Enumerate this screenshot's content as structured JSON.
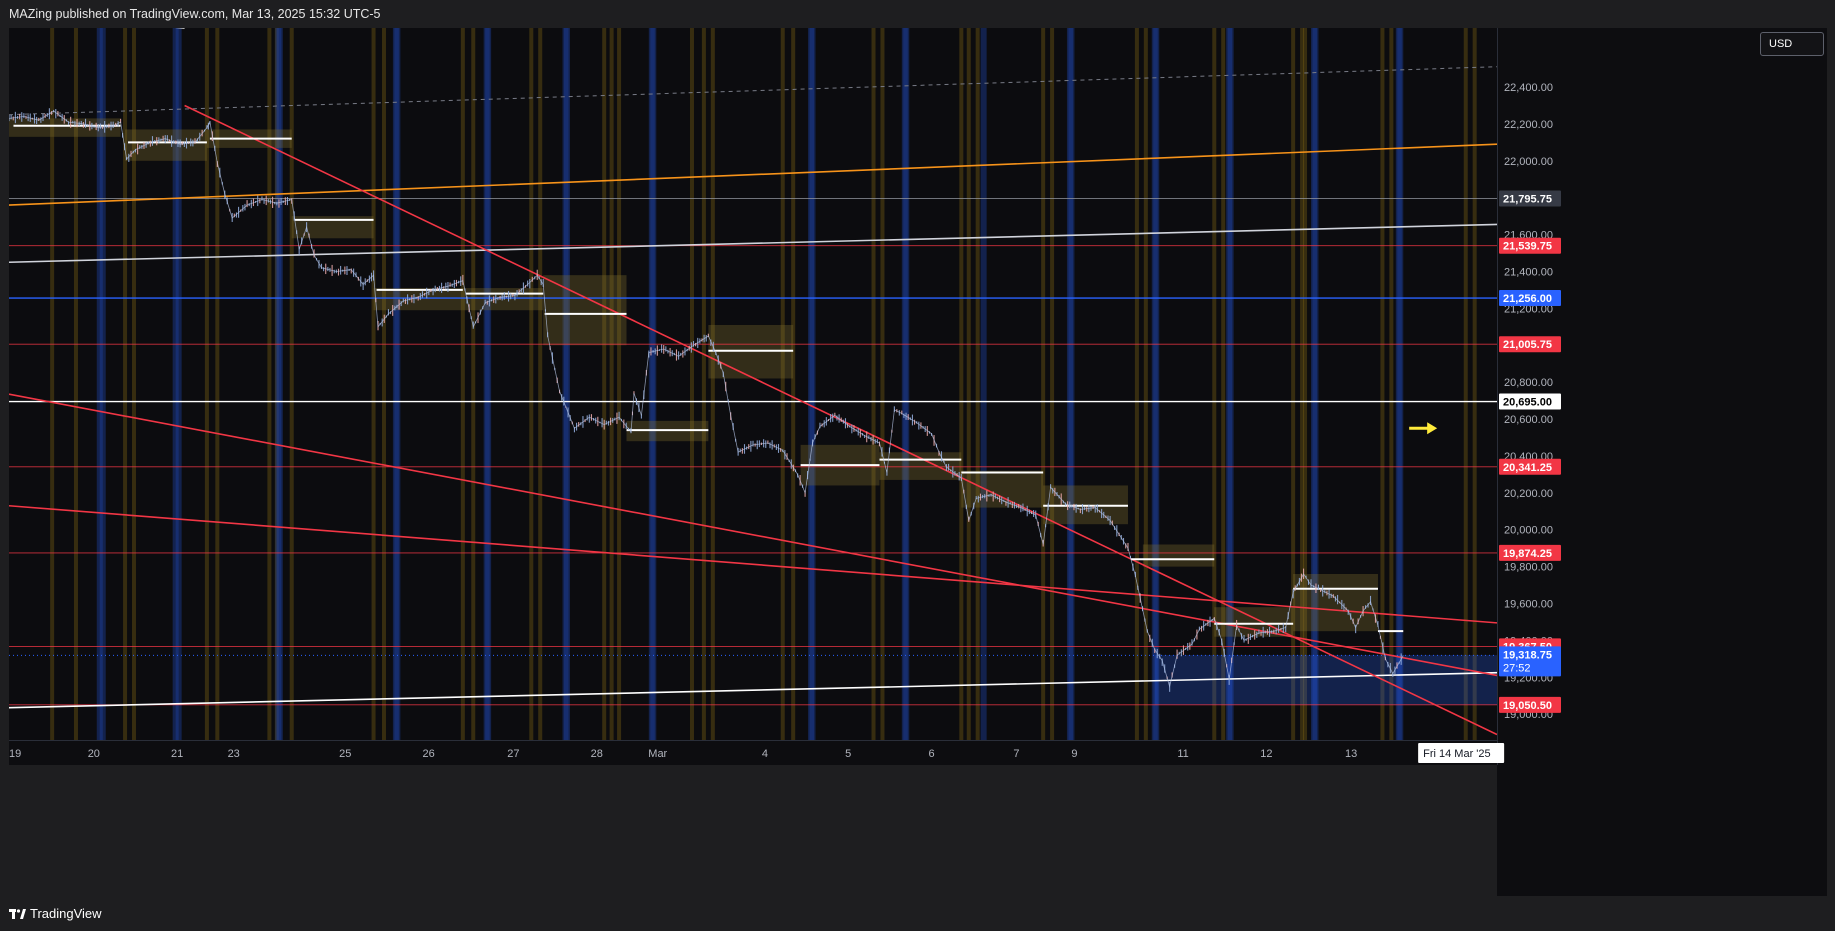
{
  "header": {
    "published": "MAZing published on TradingView.com, Mar 13, 2025 15:32 UTC-5"
  },
  "scale": {
    "currency": "USD"
  },
  "brand": {
    "name": "TradingView",
    "logo_icon": "tradingview-logo-icon"
  },
  "colors": {
    "background": "#0c0c0f",
    "scale_background": "#0d0d10",
    "red_line": "#f23645",
    "orange_line": "#f7931a",
    "blue_line": "#2962ff",
    "white_line": "#ffffff",
    "session_gold": "#8a6d14",
    "session_blue": "#1c3f99",
    "box_fill": "#7d6d2e",
    "blue_zone": "#2962ff",
    "arrow": "#ffeb3b",
    "candles": "#8fa9d8"
  },
  "chart_data": {
    "type": "candlestick",
    "y_axis": {
      "min": 18860,
      "max": 22720,
      "ticks": [
        22400,
        22200,
        22000,
        21600,
        21400,
        21200,
        20800,
        20600,
        20400,
        20200,
        20000,
        19800,
        19600,
        19400,
        19200,
        19000
      ],
      "tick_labels": [
        "22,400.00",
        "22,200.00",
        "22,000.00",
        "21,600.00",
        "21,400.00",
        "21,200.00",
        "20,800.00",
        "20,600.00",
        "20,400.00",
        "20,200.00",
        "20,000.00",
        "19,800.00",
        "19,600.00",
        "19,400.00",
        "19,200.00",
        "19,000.00"
      ]
    },
    "x_axis": {
      "labels": [
        "19",
        "20",
        "21",
        "23",
        "25",
        "26",
        "27",
        "28",
        "Mar",
        "4",
        "5",
        "6",
        "7",
        "9",
        "11",
        "12",
        "13"
      ],
      "current_date_label": "Fri 14 Mar '25"
    },
    "price_levels": [
      {
        "value": 21795.75,
        "label": "21,795.75",
        "color": "#9598a1",
        "badge_bg": "#363a45",
        "style": "thin"
      },
      {
        "value": 21539.75,
        "label": "21,539.75",
        "color": "#f23645",
        "badge_bg": "#f23645",
        "style": "thin"
      },
      {
        "value": 21256.0,
        "label": "21,256.00",
        "color": "#2962ff",
        "badge_bg": "#2962ff",
        "style": "normal"
      },
      {
        "value": 21005.75,
        "label": "21,005.75",
        "color": "#f23645",
        "badge_bg": "#f23645",
        "style": "thin"
      },
      {
        "value": 20695.0,
        "label": "20,695.00",
        "color": "#ffffff",
        "badge_bg": "#ffffff",
        "badge_text": "#000000",
        "style": "normal"
      },
      {
        "value": 20341.25,
        "label": "20,341.25",
        "color": "#f23645",
        "badge_bg": "#f23645",
        "style": "thin"
      },
      {
        "value": 19874.25,
        "label": "19,874.25",
        "color": "#f23645",
        "badge_bg": "#f23645",
        "style": "thin"
      },
      {
        "value": 19367.5,
        "label": "19,367.50",
        "color": "#f23645",
        "badge_bg": "#f23645",
        "style": "thin"
      },
      {
        "value": 19050.5,
        "label": "19,050.50",
        "color": "#f23645",
        "badge_bg": "#f23645",
        "style": "thin"
      }
    ],
    "last_price": {
      "value": 19318.75,
      "label": "19,318.75",
      "countdown": "27:52"
    },
    "trend_lines": [
      {
        "color": "#f7931a",
        "from": [
          0.0,
          21760
        ],
        "to": [
          1.0,
          22090
        ]
      },
      {
        "color": "#d1d4dc",
        "from": [
          0.0,
          21450
        ],
        "to": [
          1.0,
          21655
        ]
      },
      {
        "color": "#ffffff",
        "from": [
          0.0,
          19035
        ],
        "to": [
          1.0,
          19225
        ]
      },
      {
        "color": "#ffffff",
        "from": [
          0.0,
          22800
        ],
        "to": [
          0.118,
          22720
        ]
      },
      {
        "color": "#f23645",
        "from": [
          0.118,
          22300
        ],
        "to": [
          1.0,
          18890
        ]
      },
      {
        "color": "#f23645",
        "from": [
          0.0,
          20735
        ],
        "to": [
          1.0,
          19210
        ]
      },
      {
        "color": "#f23645",
        "from": [
          0.0,
          20130
        ],
        "to": [
          1.0,
          19495
        ]
      }
    ],
    "dashed_lines": [
      {
        "color": "#787b86",
        "from": [
          0.0,
          22250
        ],
        "to": [
          1.0,
          22510
        ]
      }
    ],
    "sessions": {
      "gold": [
        0.029,
        0.045,
        0.078,
        0.084,
        0.133,
        0.14,
        0.175,
        0.18,
        0.19,
        0.245,
        0.252,
        0.305,
        0.312,
        0.351,
        0.357,
        0.4,
        0.405,
        0.41,
        0.459,
        0.467,
        0.473,
        0.52,
        0.527,
        0.581,
        0.587,
        0.64,
        0.645,
        0.651,
        0.695,
        0.701,
        0.758,
        0.764,
        0.81,
        0.816,
        0.863,
        0.869,
        0.871,
        0.923,
        0.929,
        0.979,
        0.985
      ],
      "blue": [
        0.061,
        0.063,
        0.112,
        0.114,
        0.181,
        0.182,
        0.26,
        0.261,
        0.321,
        0.322,
        0.374,
        0.375,
        0.432,
        0.433,
        0.539,
        0.54,
        0.602,
        0.603,
        0.655,
        0.713,
        0.714,
        0.77,
        0.771,
        0.82,
        0.821,
        0.877,
        0.878,
        0.934,
        0.935
      ]
    },
    "zones": [
      {
        "x0": 0.0,
        "x1": 0.075,
        "y0": 22230,
        "y1": 22130
      },
      {
        "x0": 0.078,
        "x1": 0.133,
        "y0": 22170,
        "y1": 22000
      },
      {
        "x0": 0.133,
        "x1": 0.19,
        "y0": 22170,
        "y1": 22070
      },
      {
        "x0": 0.19,
        "x1": 0.245,
        "y0": 21700,
        "y1": 21580
      },
      {
        "x0": 0.245,
        "x1": 0.305,
        "y0": 21310,
        "y1": 21190
      },
      {
        "x0": 0.305,
        "x1": 0.359,
        "y0": 21310,
        "y1": 21190
      },
      {
        "x0": 0.359,
        "x1": 0.415,
        "y0": 21380,
        "y1": 21000
      },
      {
        "x0": 0.415,
        "x1": 0.47,
        "y0": 20590,
        "y1": 20480
      },
      {
        "x0": 0.47,
        "x1": 0.527,
        "y0": 21110,
        "y1": 20820
      },
      {
        "x0": 0.532,
        "x1": 0.585,
        "y0": 20460,
        "y1": 20240
      },
      {
        "x0": 0.585,
        "x1": 0.64,
        "y0": 20420,
        "y1": 20270
      },
      {
        "x0": 0.64,
        "x1": 0.695,
        "y0": 20320,
        "y1": 20120
      },
      {
        "x0": 0.695,
        "x1": 0.752,
        "y0": 20240,
        "y1": 20030
      },
      {
        "x0": 0.762,
        "x1": 0.81,
        "y0": 19920,
        "y1": 19800
      },
      {
        "x0": 0.81,
        "x1": 0.863,
        "y0": 19580,
        "y1": 19420
      },
      {
        "x0": 0.863,
        "x1": 0.92,
        "y0": 19760,
        "y1": 19450
      }
    ],
    "session_highs": [
      {
        "x0": 0.003,
        "x1": 0.075,
        "y": 22190
      },
      {
        "x0": 0.08,
        "x1": 0.133,
        "y": 22100
      },
      {
        "x0": 0.135,
        "x1": 0.19,
        "y": 22120
      },
      {
        "x0": 0.192,
        "x1": 0.245,
        "y": 21680
      },
      {
        "x0": 0.247,
        "x1": 0.305,
        "y": 21300
      },
      {
        "x0": 0.307,
        "x1": 0.359,
        "y": 21280
      },
      {
        "x0": 0.36,
        "x1": 0.415,
        "y": 21170
      },
      {
        "x0": 0.415,
        "x1": 0.47,
        "y": 20540
      },
      {
        "x0": 0.47,
        "x1": 0.527,
        "y": 20970
      },
      {
        "x0": 0.532,
        "x1": 0.585,
        "y": 20350
      },
      {
        "x0": 0.585,
        "x1": 0.64,
        "y": 20380
      },
      {
        "x0": 0.64,
        "x1": 0.695,
        "y": 20310
      },
      {
        "x0": 0.695,
        "x1": 0.752,
        "y": 20130
      },
      {
        "x0": 0.754,
        "x1": 0.81,
        "y": 19840
      },
      {
        "x0": 0.81,
        "x1": 0.863,
        "y": 19490
      },
      {
        "x0": 0.863,
        "x1": 0.92,
        "y": 19680
      },
      {
        "x0": 0.92,
        "x1": 0.937,
        "y": 19450
      }
    ],
    "blue_zone": {
      "x0": 0.77,
      "x1": 1.0,
      "y0": 19320,
      "y1": 19050
    },
    "price_path": [
      [
        0.0,
        22230
      ],
      [
        0.01,
        22240
      ],
      [
        0.02,
        22220
      ],
      [
        0.03,
        22270
      ],
      [
        0.04,
        22210
      ],
      [
        0.05,
        22200
      ],
      [
        0.06,
        22180
      ],
      [
        0.07,
        22190
      ],
      [
        0.075,
        22210
      ],
      [
        0.079,
        22010
      ],
      [
        0.085,
        22060
      ],
      [
        0.095,
        22100
      ],
      [
        0.105,
        22120
      ],
      [
        0.115,
        22090
      ],
      [
        0.125,
        22100
      ],
      [
        0.133,
        22180
      ],
      [
        0.135,
        22210
      ],
      [
        0.14,
        21990
      ],
      [
        0.145,
        21820
      ],
      [
        0.15,
        21690
      ],
      [
        0.16,
        21760
      ],
      [
        0.17,
        21790
      ],
      [
        0.18,
        21770
      ],
      [
        0.19,
        21790
      ],
      [
        0.195,
        21520
      ],
      [
        0.2,
        21640
      ],
      [
        0.205,
        21490
      ],
      [
        0.21,
        21420
      ],
      [
        0.22,
        21400
      ],
      [
        0.23,
        21410
      ],
      [
        0.238,
        21330
      ],
      [
        0.245,
        21380
      ],
      [
        0.248,
        21100
      ],
      [
        0.255,
        21170
      ],
      [
        0.265,
        21240
      ],
      [
        0.275,
        21260
      ],
      [
        0.285,
        21300
      ],
      [
        0.295,
        21320
      ],
      [
        0.305,
        21350
      ],
      [
        0.312,
        21100
      ],
      [
        0.32,
        21230
      ],
      [
        0.33,
        21260
      ],
      [
        0.34,
        21270
      ],
      [
        0.35,
        21340
      ],
      [
        0.355,
        21380
      ],
      [
        0.359,
        21330
      ],
      [
        0.362,
        21050
      ],
      [
        0.37,
        20750
      ],
      [
        0.38,
        20550
      ],
      [
        0.39,
        20610
      ],
      [
        0.4,
        20570
      ],
      [
        0.41,
        20610
      ],
      [
        0.418,
        20530
      ],
      [
        0.42,
        20740
      ],
      [
        0.425,
        20620
      ],
      [
        0.43,
        20960
      ],
      [
        0.44,
        20980
      ],
      [
        0.45,
        20940
      ],
      [
        0.46,
        21000
      ],
      [
        0.47,
        21050
      ],
      [
        0.475,
        20960
      ],
      [
        0.48,
        20850
      ],
      [
        0.485,
        20620
      ],
      [
        0.49,
        20420
      ],
      [
        0.5,
        20460
      ],
      [
        0.51,
        20470
      ],
      [
        0.52,
        20430
      ],
      [
        0.53,
        20300
      ],
      [
        0.535,
        20200
      ],
      [
        0.54,
        20470
      ],
      [
        0.545,
        20560
      ],
      [
        0.555,
        20620
      ],
      [
        0.565,
        20560
      ],
      [
        0.575,
        20510
      ],
      [
        0.585,
        20470
      ],
      [
        0.59,
        20310
      ],
      [
        0.595,
        20650
      ],
      [
        0.6,
        20630
      ],
      [
        0.61,
        20580
      ],
      [
        0.62,
        20520
      ],
      [
        0.625,
        20420
      ],
      [
        0.63,
        20340
      ],
      [
        0.64,
        20280
      ],
      [
        0.645,
        20050
      ],
      [
        0.65,
        20170
      ],
      [
        0.66,
        20190
      ],
      [
        0.67,
        20150
      ],
      [
        0.68,
        20120
      ],
      [
        0.69,
        20080
      ],
      [
        0.695,
        19920
      ],
      [
        0.7,
        20230
      ],
      [
        0.71,
        20140
      ],
      [
        0.72,
        20110
      ],
      [
        0.73,
        20120
      ],
      [
        0.74,
        20050
      ],
      [
        0.752,
        19900
      ],
      [
        0.757,
        19750
      ],
      [
        0.765,
        19450
      ],
      [
        0.77,
        19350
      ],
      [
        0.775,
        19290
      ],
      [
        0.78,
        19150
      ],
      [
        0.785,
        19320
      ],
      [
        0.795,
        19380
      ],
      [
        0.8,
        19460
      ],
      [
        0.81,
        19520
      ],
      [
        0.815,
        19400
      ],
      [
        0.82,
        19190
      ],
      [
        0.825,
        19480
      ],
      [
        0.83,
        19400
      ],
      [
        0.84,
        19440
      ],
      [
        0.85,
        19450
      ],
      [
        0.858,
        19470
      ],
      [
        0.863,
        19660
      ],
      [
        0.87,
        19760
      ],
      [
        0.875,
        19700
      ],
      [
        0.88,
        19680
      ],
      [
        0.89,
        19640
      ],
      [
        0.9,
        19560
      ],
      [
        0.905,
        19470
      ],
      [
        0.91,
        19560
      ],
      [
        0.915,
        19610
      ],
      [
        0.92,
        19480
      ],
      [
        0.925,
        19300
      ],
      [
        0.93,
        19220
      ],
      [
        0.937,
        19318
      ]
    ],
    "plot_width_fraction": 1.0,
    "future_arrow": {
      "x": 0.945,
      "y": 20550
    }
  }
}
